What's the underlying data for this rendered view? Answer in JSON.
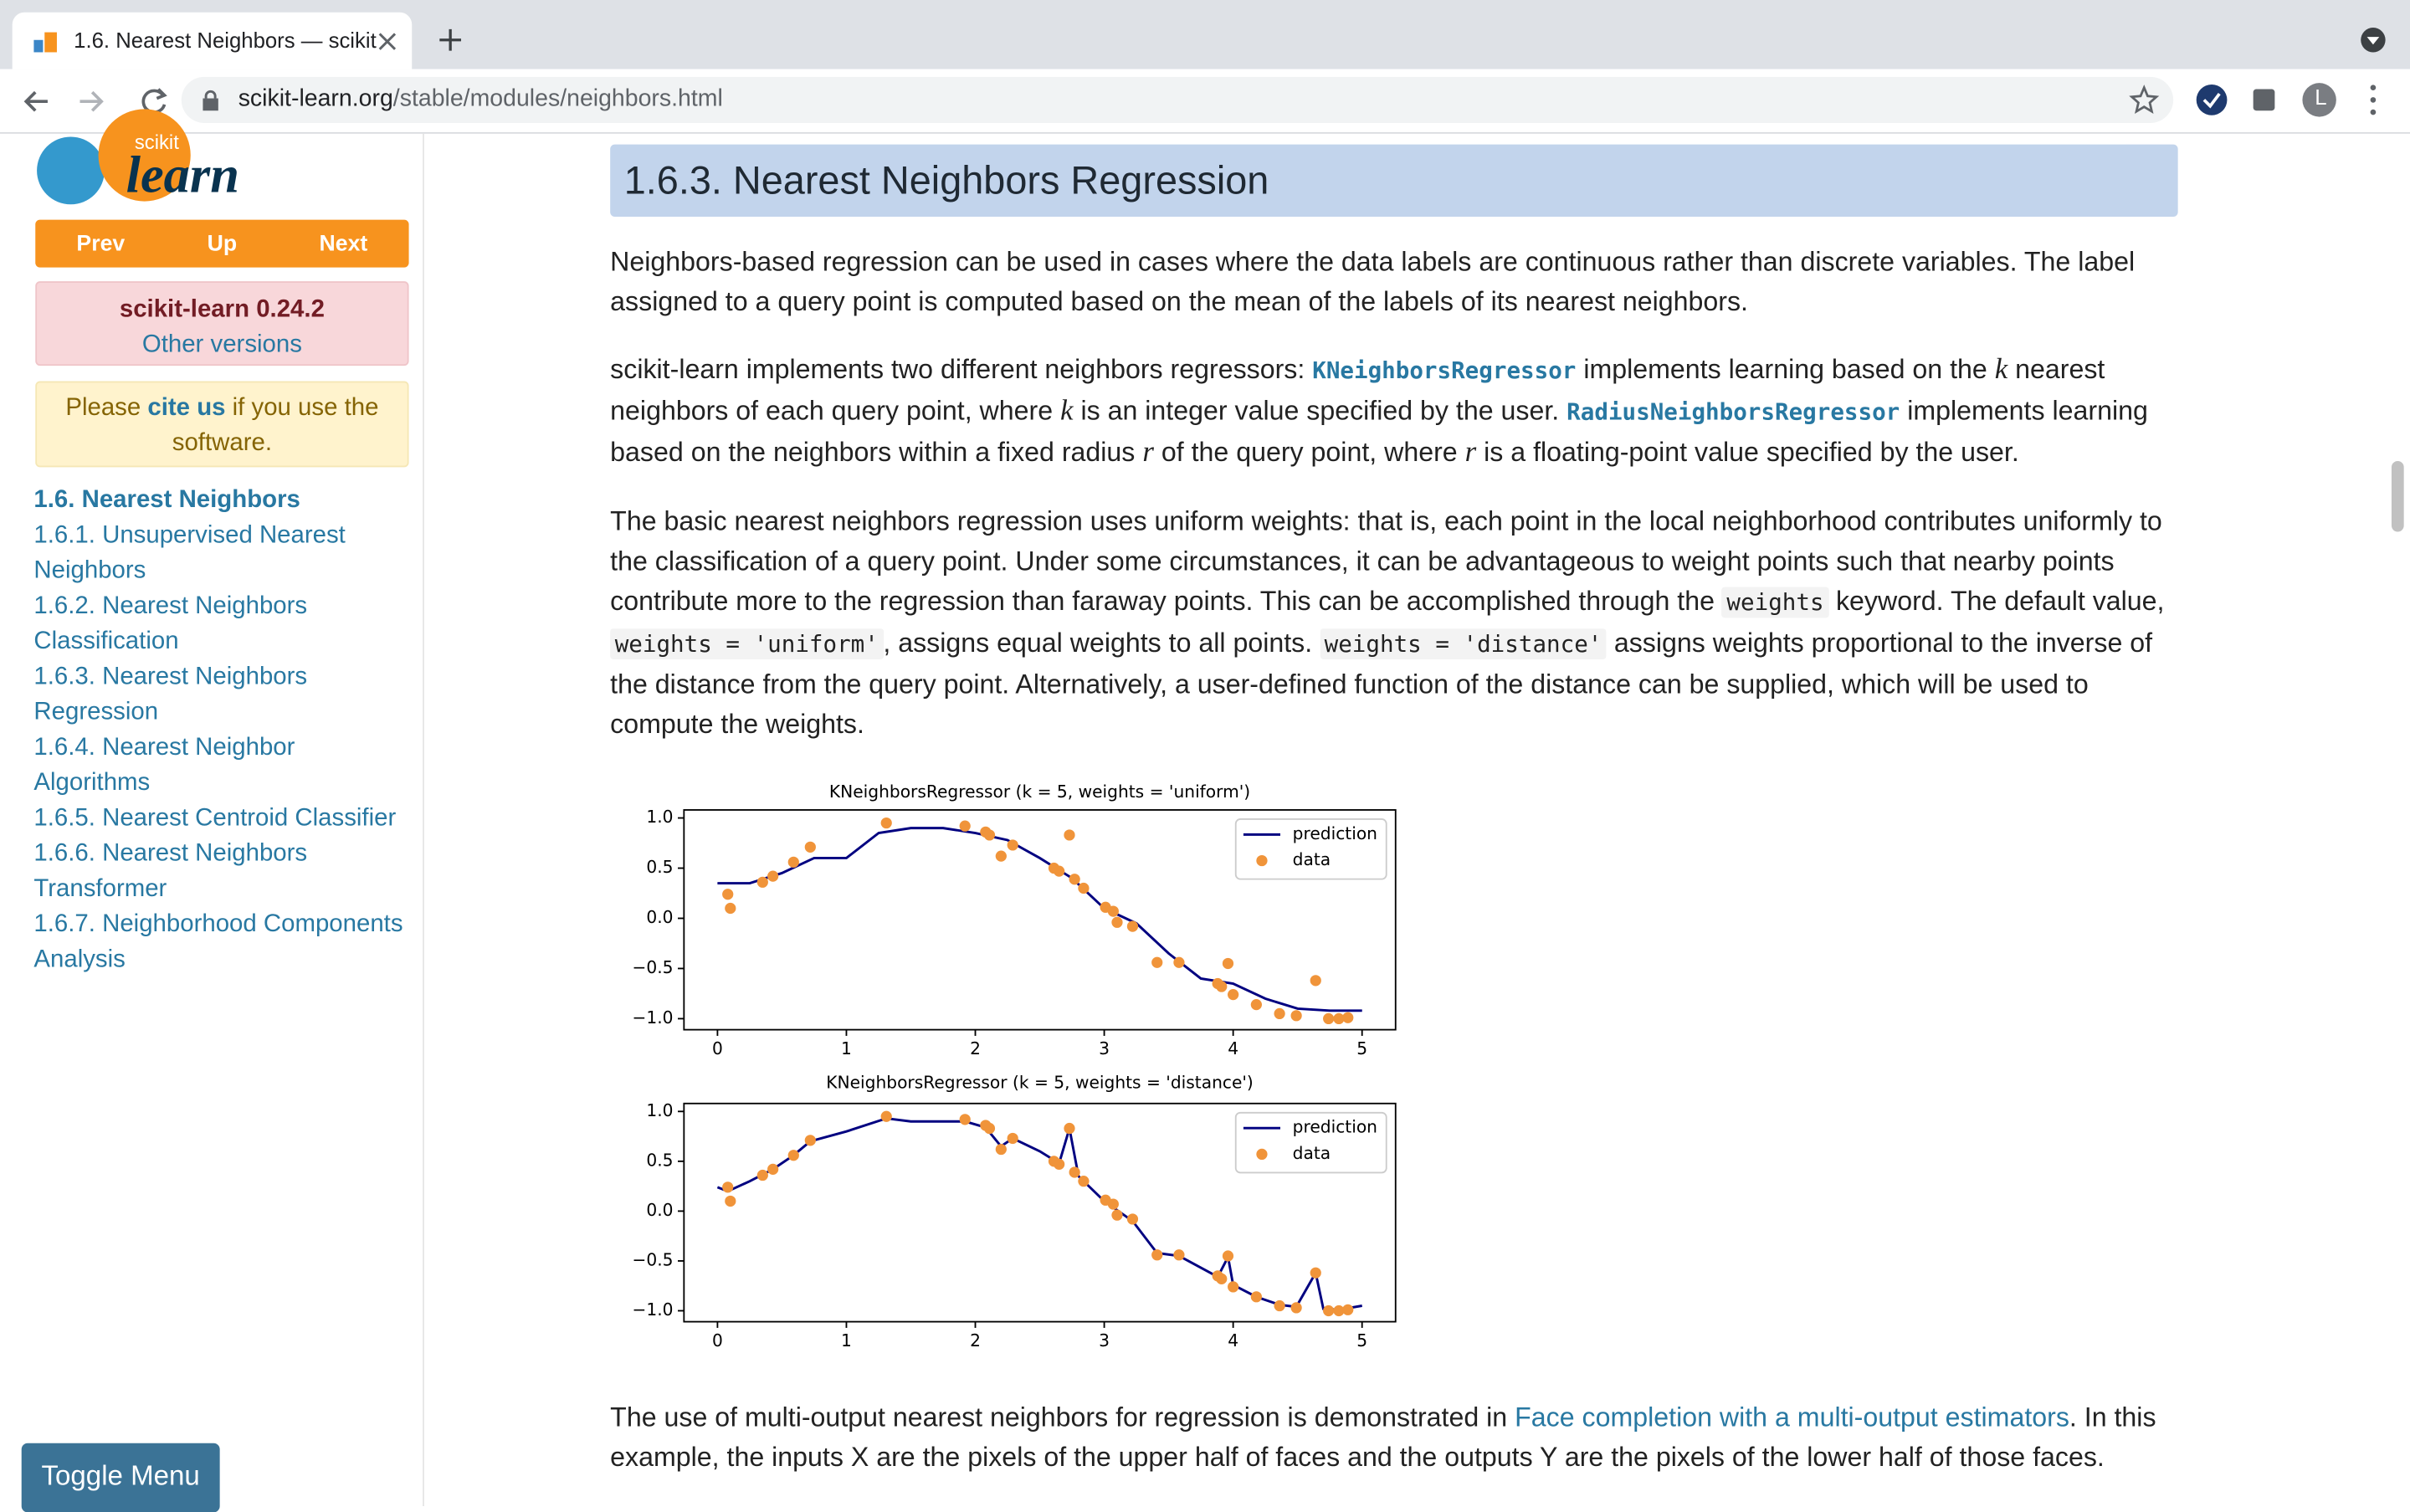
{
  "browser": {
    "tab_title": "1.6. Nearest Neighbors — scikit",
    "url_host": "scikit-learn.org",
    "url_path": "/stable/modules/neighbors.html",
    "profile_initial": "L"
  },
  "sidebar": {
    "logo_small": "scikit",
    "logo_big": "learn",
    "nav_buttons": [
      "Prev",
      "Up",
      "Next"
    ],
    "version": "scikit-learn 0.24.2",
    "other_versions": "Other versions",
    "cite": [
      "Please ",
      "cite us",
      " if you use the software."
    ],
    "toc": [
      "1.6. Nearest Neighbors",
      "1.6.1. Unsupervised Nearest Neighbors",
      "1.6.2. Nearest Neighbors Classification",
      "1.6.3. Nearest Neighbors Regression",
      "1.6.4. Nearest Neighbor Algorithms",
      "1.6.5. Nearest Centroid Classifier",
      "1.6.6. Nearest Neighbors Transformer",
      "1.6.7. Neighborhood Components Analysis"
    ],
    "toggle": "Toggle Menu"
  },
  "content": {
    "heading": "1.6.3. Nearest Neighbors Regression",
    "paragraphs": [
      [
        {
          "text": "Neighbors-based regression can be used in cases where the data labels are continuous rather than discrete variables. The label assigned to a query point is computed based on the mean of the labels of its nearest neighbors."
        }
      ],
      [
        {
          "text": "scikit-learn implements two different neighbors regressors: "
        },
        {
          "code_link": "KNeighborsRegressor"
        },
        {
          "text": " implements learning based on the "
        },
        {
          "math": "k"
        },
        {
          "text": " nearest neighbors of each query point, where "
        },
        {
          "math": "k"
        },
        {
          "text": " is an integer value specified by the user. "
        },
        {
          "code_link": "RadiusNeighborsRegressor"
        },
        {
          "text": " implements learning based on the neighbors within a fixed radius "
        },
        {
          "math": "r"
        },
        {
          "text": " of the query point, where "
        },
        {
          "math": "r"
        },
        {
          "text": " is a floating-point value specified by the user."
        }
      ],
      [
        {
          "text": "The basic nearest neighbors regression uses uniform weights: that is, each point in the local neighborhood contributes uniformly to the classification of a query point. Under some circumstances, it can be advantageous to weight points such that nearby points contribute more to the regression than faraway points. This can be accomplished through the "
        },
        {
          "code": "weights"
        },
        {
          "text": " keyword. The default value, "
        },
        {
          "code": "weights = 'uniform'"
        },
        {
          "text": ", assigns equal weights to all points. "
        },
        {
          "code": "weights = 'distance'"
        },
        {
          "text": " assigns weights proportional to the inverse of the distance from the query point. Alternatively, a user-defined function of the distance can be supplied, which will be used to compute the weights."
        }
      ]
    ],
    "paragraphs_after": [
      [
        {
          "text": "The use of multi-output nearest neighbors for regression is demonstrated in "
        },
        {
          "link": "Face completion with a multi-output estimators"
        },
        {
          "text": ". In this example, the inputs X are the pixels of the upper half of faces and the outputs Y are the pixels of the lower half of those faces."
        }
      ]
    ]
  },
  "chart_data": [
    {
      "type": "line",
      "title": "KNeighborsRegressor (k = 5, weights = 'uniform')",
      "legend": "upper right",
      "xlim": [
        -0.26,
        5.26
      ],
      "ylim": [
        -1.11,
        1.08
      ],
      "xticks": [
        0,
        1,
        2,
        3,
        4,
        5
      ],
      "yticks": [
        {
          "value": 1.0,
          "label": "1.0"
        },
        {
          "value": 0.5,
          "label": "0.5"
        },
        {
          "value": 0.0,
          "label": "0.0"
        },
        {
          "value": -0.5,
          "label": "−0.5"
        },
        {
          "value": -1.0,
          "label": "−1.0"
        }
      ],
      "series": [
        {
          "name": "prediction",
          "color": "#000080",
          "kind": "line",
          "x": [
            0,
            0.25,
            0.5,
            0.75,
            1.0,
            1.25,
            1.5,
            1.75,
            2.0,
            2.25,
            2.5,
            2.75,
            3.0,
            3.25,
            3.5,
            3.75,
            4.0,
            4.25,
            4.5,
            4.75,
            5.0
          ],
          "values": [
            0.35,
            0.35,
            0.45,
            0.6,
            0.6,
            0.85,
            0.9,
            0.9,
            0.85,
            0.78,
            0.6,
            0.4,
            0.1,
            -0.05,
            -0.35,
            -0.6,
            -0.65,
            -0.8,
            -0.9,
            -0.92,
            -0.92
          ]
        },
        {
          "name": "data",
          "color": "#f0943a",
          "kind": "scatter",
          "x": [
            0.08,
            0.1,
            0.35,
            0.43,
            0.59,
            0.72,
            1.31,
            1.92,
            2.08,
            2.11,
            2.2,
            2.29,
            2.61,
            2.65,
            2.73,
            2.77,
            2.84,
            3.01,
            3.07,
            3.1,
            3.22,
            3.41,
            3.58,
            3.88,
            3.91,
            3.96,
            4.0,
            4.18,
            4.36,
            4.49,
            4.64,
            4.74,
            4.82,
            4.89
          ],
          "values": [
            0.24,
            0.1,
            0.36,
            0.42,
            0.56,
            0.71,
            0.95,
            0.92,
            0.86,
            0.83,
            0.62,
            0.73,
            0.5,
            0.47,
            0.83,
            0.39,
            0.3,
            0.11,
            0.07,
            -0.04,
            -0.08,
            -0.44,
            -0.44,
            -0.65,
            -0.68,
            -0.45,
            -0.76,
            -0.86,
            -0.95,
            -0.97,
            -0.62,
            -1.0,
            -1.0,
            -0.99
          ]
        }
      ]
    },
    {
      "type": "line",
      "title": "KNeighborsRegressor (k = 5, weights = 'distance')",
      "legend": "upper right",
      "xlim": [
        -0.26,
        5.26
      ],
      "ylim": [
        -1.11,
        1.08
      ],
      "xticks": [
        0,
        1,
        2,
        3,
        4,
        5
      ],
      "yticks": [
        {
          "value": 1.0,
          "label": "1.0"
        },
        {
          "value": 0.5,
          "label": "0.5"
        },
        {
          "value": 0.0,
          "label": "0.0"
        },
        {
          "value": -0.5,
          "label": "−0.5"
        },
        {
          "value": -1.0,
          "label": "−1.0"
        }
      ],
      "series": [
        {
          "name": "prediction",
          "color": "#000080",
          "kind": "line",
          "x": [
            0,
            0.08,
            0.25,
            0.43,
            0.59,
            0.72,
            1.0,
            1.31,
            1.5,
            1.92,
            2.08,
            2.2,
            2.29,
            2.5,
            2.65,
            2.73,
            2.8,
            3.0,
            3.22,
            3.41,
            3.58,
            3.88,
            3.96,
            4.0,
            4.18,
            4.36,
            4.49,
            4.64,
            4.7,
            4.82,
            5.0
          ],
          "values": [
            0.24,
            0.2,
            0.3,
            0.42,
            0.56,
            0.7,
            0.8,
            0.93,
            0.9,
            0.9,
            0.84,
            0.65,
            0.73,
            0.6,
            0.48,
            0.83,
            0.35,
            0.1,
            -0.1,
            -0.42,
            -0.45,
            -0.66,
            -0.46,
            -0.74,
            -0.86,
            -0.94,
            -0.96,
            -0.62,
            -0.98,
            -0.99,
            -0.95
          ]
        },
        {
          "name": "data",
          "color": "#f0943a",
          "kind": "scatter",
          "x": [
            0.08,
            0.1,
            0.35,
            0.43,
            0.59,
            0.72,
            1.31,
            1.92,
            2.08,
            2.11,
            2.2,
            2.29,
            2.61,
            2.65,
            2.73,
            2.77,
            2.84,
            3.01,
            3.07,
            3.1,
            3.22,
            3.41,
            3.58,
            3.88,
            3.91,
            3.96,
            4.0,
            4.18,
            4.36,
            4.49,
            4.64,
            4.74,
            4.82,
            4.89
          ],
          "values": [
            0.24,
            0.1,
            0.36,
            0.42,
            0.56,
            0.71,
            0.95,
            0.92,
            0.86,
            0.83,
            0.62,
            0.73,
            0.5,
            0.47,
            0.83,
            0.39,
            0.3,
            0.11,
            0.07,
            -0.04,
            -0.08,
            -0.44,
            -0.44,
            -0.65,
            -0.68,
            -0.45,
            -0.76,
            -0.86,
            -0.95,
            -0.97,
            -0.62,
            -1.0,
            -1.0,
            -0.99
          ]
        }
      ]
    }
  ]
}
